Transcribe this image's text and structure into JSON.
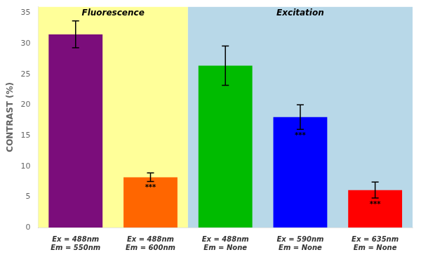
{
  "chart_data": {
    "type": "bar",
    "categories": [
      "Ex = 488nm\nEm = 550nm",
      "Ex = 488nm\nEm = 600nm",
      "Ex = 488nm\nEm = None",
      "Ex = 590nm\nEm = None",
      "Ex = 635nm\nEm = None"
    ],
    "values": [
      31.5,
      8.2,
      26.4,
      18.0,
      6.1
    ],
    "errors": [
      2.2,
      0.7,
      3.2,
      2.0,
      1.3
    ],
    "colors": [
      "#7B0D7B",
      "#FF6600",
      "#00BB00",
      "#0000FF",
      "#FF0000"
    ],
    "significance": [
      null,
      "***",
      null,
      "***",
      "***"
    ],
    "regions": [
      {
        "label": "Fluorescence",
        "color": "#FFFF99",
        "categories": [
          "Ex = 488nm\nEm = 550nm",
          "Ex = 488nm\nEm = 600nm"
        ]
      },
      {
        "label": "Excitation",
        "color": "#B8D8E8",
        "categories": [
          "Ex = 488nm\nEm = None",
          "Ex = 590nm\nEm = None",
          "Ex = 635nm\nEm = None"
        ]
      }
    ],
    "ylabel": "CONTRAST (%)",
    "ylim": [
      0,
      36
    ],
    "yticks": [
      0,
      5,
      10,
      15,
      20,
      25,
      30,
      35
    ],
    "grid": false
  }
}
